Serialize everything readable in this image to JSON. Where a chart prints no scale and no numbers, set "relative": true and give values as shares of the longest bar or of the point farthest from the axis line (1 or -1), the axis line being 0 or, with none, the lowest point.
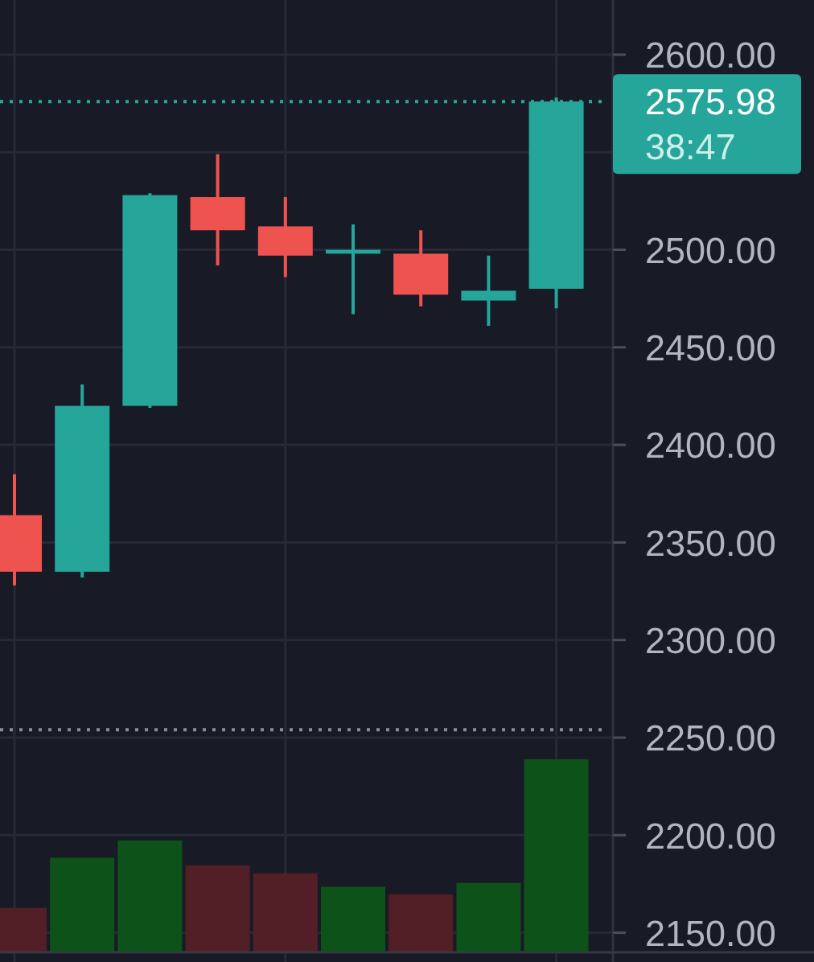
{
  "chart_data": [
    {
      "type": "candlestick",
      "categories": [
        null,
        null,
        null,
        null,
        null,
        null,
        null,
        null,
        null
      ],
      "ohlc": [
        [
          2364,
          2385,
          2328,
          2335
        ],
        [
          2335,
          2431,
          2332,
          2420
        ],
        [
          2420,
          2529,
          2419,
          2528
        ],
        [
          2527,
          2549,
          2492,
          2510
        ],
        [
          2512,
          2527,
          2486,
          2497
        ],
        [
          2498,
          2513,
          2467,
          2500
        ],
        [
          2498,
          2510,
          2471,
          2477
        ],
        [
          2474,
          2497,
          2461,
          2479
        ],
        [
          2480,
          2578,
          2470,
          2575.98
        ]
      ],
      "colors": [
        "#ef5350",
        "#26a69a",
        "#26a69a",
        "#ef5350",
        "#ef5350",
        "#26a69a",
        "#ef5350",
        "#26a69a",
        "#26a69a"
      ],
      "ylim": [
        2135,
        2628
      ],
      "yticks": [
        {
          "value": 2150,
          "label": "2150.00"
        },
        {
          "value": 2200,
          "label": "2200.00"
        },
        {
          "value": 2250,
          "label": "2250.00"
        },
        {
          "value": 2300,
          "label": "2300.00"
        },
        {
          "value": 2350,
          "label": "2350.00"
        },
        {
          "value": 2400,
          "label": "2400.00"
        },
        {
          "value": 2450,
          "label": "2450.00"
        },
        {
          "value": 2500,
          "label": "2500.00"
        },
        {
          "value": 2550,
          "label": null
        },
        {
          "value": 2600,
          "label": "2600.00"
        }
      ],
      "grid": true,
      "tick_labels": "y",
      "ref_lines": [
        {
          "axis": "y",
          "value": 2575.98,
          "label": "2575.98",
          "color": "#26a69a",
          "line_style": "dotted"
        },
        {
          "axis": "y",
          "value": 2254,
          "color": "#8a8d96",
          "line_style": "dotted"
        }
      ],
      "annotations": [
        "38:47"
      ]
    },
    {
      "type": "bar",
      "categories": [
        null,
        null,
        null,
        null,
        null,
        null,
        null,
        null,
        null
      ],
      "values": [
        0.23,
        0.49,
        0.58,
        0.45,
        0.41,
        0.34,
        0.3,
        0.36,
        1
      ],
      "colors": [
        "#521f26",
        "#0d5219",
        "#0d5219",
        "#521f26",
        "#521f26",
        "#0d5219",
        "#521f26",
        "#0d5219",
        "#0d5219"
      ],
      "relative": true
    }
  ]
}
